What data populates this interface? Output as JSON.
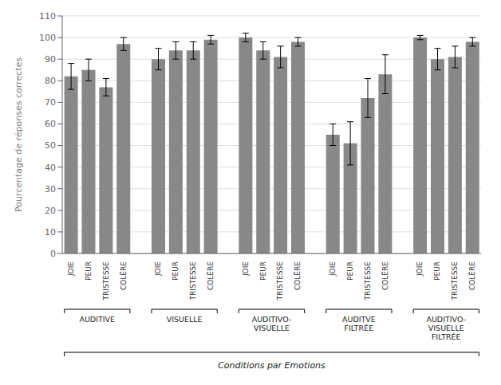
{
  "chart_data": {
    "type": "bar",
    "categories": [
      "JOIE",
      "PEUR",
      "TRISTESSE",
      "COLÈRE"
    ],
    "groups": [
      {
        "label": "AUDITIVE",
        "values": [
          82,
          85,
          77,
          97
        ],
        "errors": [
          6,
          5,
          4,
          3
        ]
      },
      {
        "label": "VISUELLE",
        "values": [
          90,
          94,
          94,
          99
        ],
        "errors": [
          5,
          4,
          4,
          2
        ]
      },
      {
        "label": "AUDITIVO-\nVISUELLE",
        "values": [
          100,
          94,
          91,
          98
        ],
        "errors": [
          2,
          4,
          5,
          2
        ]
      },
      {
        "label": "AUDITVE\nFILTRÉE",
        "values": [
          55,
          51,
          72,
          83
        ],
        "errors": [
          5,
          10,
          9,
          9
        ]
      },
      {
        "label": "AUDITIVO-\nVISUELLE\nFILTRÉE",
        "values": [
          100,
          90,
          91,
          98
        ],
        "errors": [
          1,
          5,
          5,
          2
        ]
      }
    ],
    "color": "#888888",
    "ylabel": "Pourcentage de réponses correctes",
    "xlabel": "Conditions par Emotions",
    "ylim": [
      0,
      110
    ],
    "yticks": [
      0,
      10,
      20,
      30,
      40,
      50,
      60,
      70,
      80,
      90,
      100,
      110
    ],
    "grid": true
  }
}
